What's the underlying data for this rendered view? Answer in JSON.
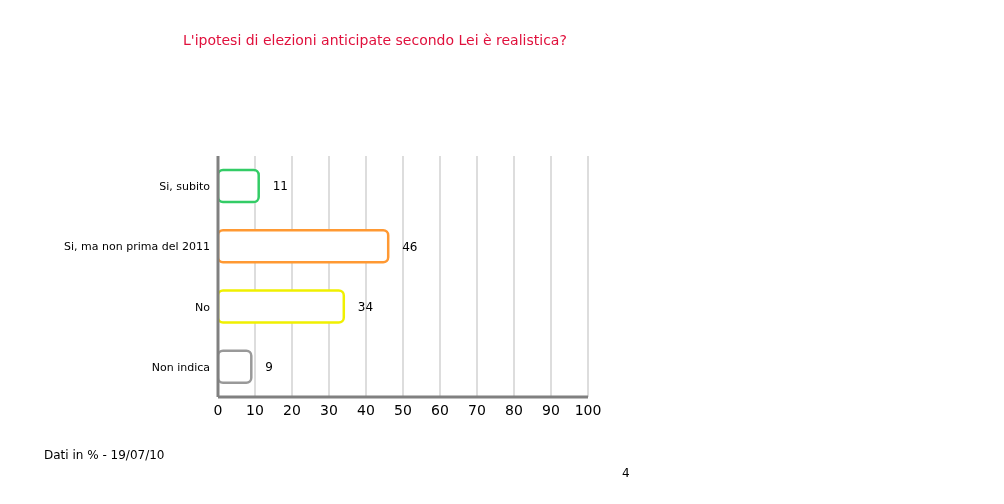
{
  "chart_data": {
    "type": "bar",
    "orientation": "horizontal",
    "title": "L'ipotesi di elezioni anticipate secondo Lei è realistica?",
    "categories": [
      "Si, subito",
      "Si, ma non prima del 2011",
      "No",
      "Non indica"
    ],
    "values": [
      11,
      46,
      34,
      9
    ],
    "colors": [
      "#33cc66",
      "#ff9933",
      "#f0f000",
      "#999999"
    ],
    "xlim": [
      0,
      100
    ],
    "xticks": [
      0,
      10,
      20,
      30,
      40,
      50,
      60,
      70,
      80,
      90,
      100
    ],
    "grid": "x",
    "data_labels": true,
    "annotations": [
      "Dati in % - 19/07/10",
      "4"
    ]
  }
}
